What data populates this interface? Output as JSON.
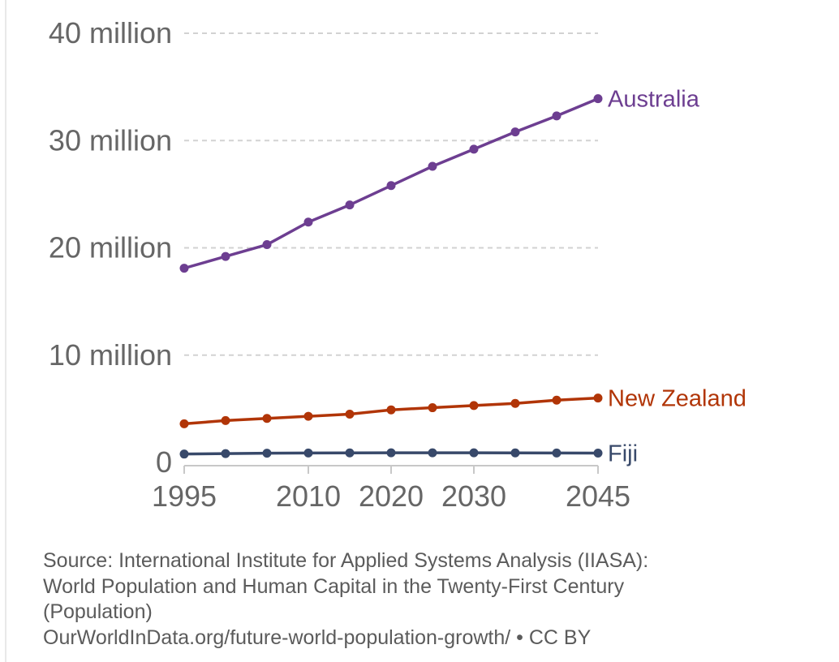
{
  "chart_data": {
    "type": "line",
    "x": [
      1995,
      2000,
      2005,
      2010,
      2015,
      2020,
      2025,
      2030,
      2035,
      2040,
      2045
    ],
    "x_ticks": [
      1995,
      2010,
      2020,
      2030,
      2045
    ],
    "x_tick_labels": [
      "1995",
      "2010",
      "2020",
      "2030",
      "2045"
    ],
    "y_ticks": [
      0,
      10000000,
      20000000,
      30000000,
      40000000
    ],
    "y_tick_labels": [
      "0",
      "10 million",
      "20 million",
      "30 million",
      "40 million"
    ],
    "ylim": [
      0,
      40000000
    ],
    "xlim": [
      1995,
      2045
    ],
    "grid": true,
    "series": [
      {
        "name": "Australia",
        "color": "#6d3e91",
        "values": [
          18100000,
          19200000,
          20300000,
          22400000,
          24000000,
          25800000,
          27600000,
          29200000,
          30800000,
          32300000,
          33900000
        ]
      },
      {
        "name": "New Zealand",
        "color": "#b13507",
        "values": [
          3600000,
          3900000,
          4100000,
          4300000,
          4500000,
          4900000,
          5100000,
          5300000,
          5500000,
          5800000,
          6000000
        ]
      },
      {
        "name": "Fiji",
        "color": "#38496a",
        "values": [
          780000,
          820000,
          860000,
          880000,
          890000,
          900000,
          900000,
          900000,
          890000,
          880000,
          870000
        ]
      }
    ]
  },
  "source": {
    "line1": "Source: International Institute for Applied Systems Analysis (IIASA):",
    "line2": "World Population and Human Capital in the Twenty-First Century",
    "line3": "(Population)",
    "line4": "OurWorldInData.org/future-world-population-growth/ • CC BY"
  }
}
